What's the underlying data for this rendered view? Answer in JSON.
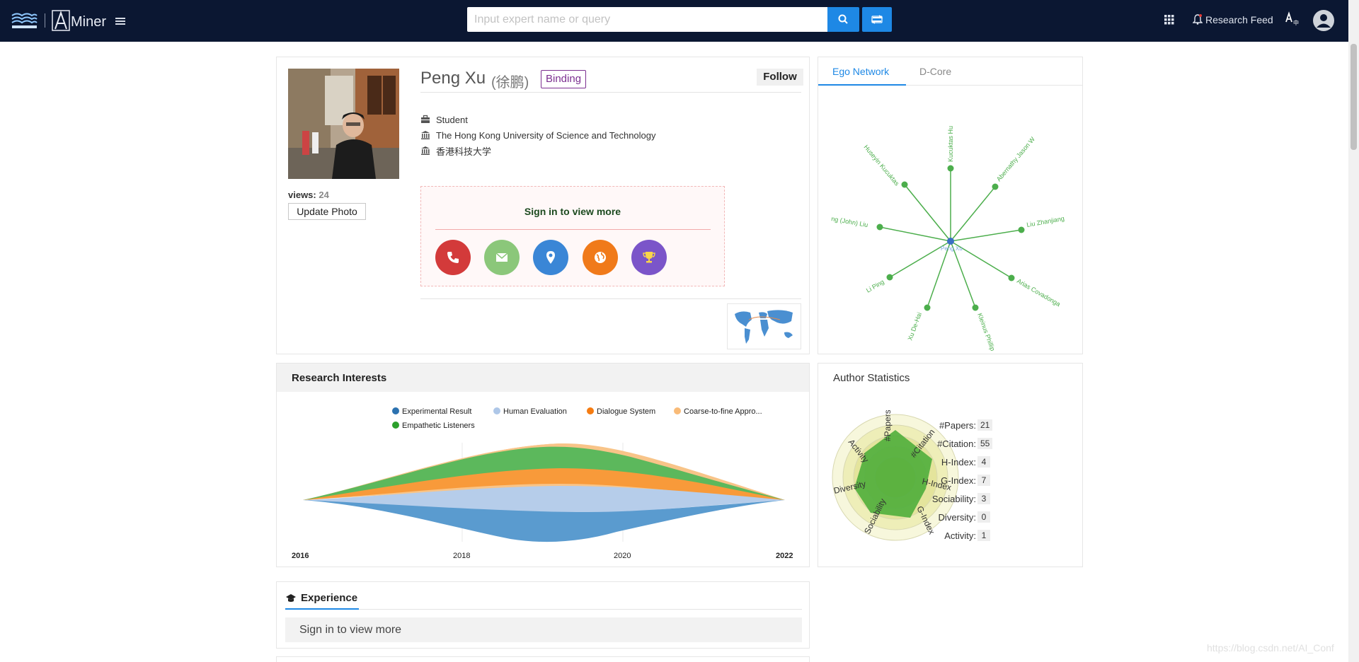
{
  "nav": {
    "brand": "Miner",
    "search_placeholder": "Input expert name or query",
    "research_feed": "Research Feed"
  },
  "profile": {
    "views_label": "views:",
    "views": "24",
    "update_photo": "Update Photo",
    "name": "Peng Xu",
    "name_zh": "(徐鹏)",
    "binding": "Binding",
    "follow": "Follow",
    "position": "Student",
    "affiliation": "The Hong Kong University of Science and Technology",
    "affiliation_zh": "香港科技大学",
    "signin_text": "Sign in to view more",
    "contact_icons": [
      "phone-icon",
      "mail-icon",
      "location-icon",
      "globe-icon",
      "trophy-icon"
    ],
    "contact_colors": [
      "#d33a3a",
      "#8bc77a",
      "#3a86d6",
      "#f07a1a",
      "#7b55c9"
    ]
  },
  "ego": {
    "tabs": [
      "Ego Network",
      "D-Core"
    ],
    "center": "Peng Xu",
    "nodes": [
      "Kucuktas Hu",
      "Abernathy Jason W",
      "Liu Zhanjiang",
      "Arias Covadonga",
      "Kleinus Phillip",
      "Xu De-Hai",
      "Li Ping",
      "ng (John) Liu",
      "Huseyin Kucuktas"
    ]
  },
  "research": {
    "title": "Research Interests",
    "legend": [
      "Experimental Result",
      "Human Evaluation",
      "Dialogue System",
      "Coarse-to-fine Appro...",
      "Empathetic Listeners"
    ],
    "colors": [
      "#5a9bcf",
      "#b6cdea",
      "#f89a3a",
      "#f8c488",
      "#5cb85c"
    ],
    "years": [
      "2016",
      "2018",
      "2020",
      "2022"
    ]
  },
  "stats": {
    "title": "Author Statistics",
    "rows": [
      {
        "label": "#Papers:",
        "value": "21"
      },
      {
        "label": "#Citation:",
        "value": "55"
      },
      {
        "label": "H-Index:",
        "value": "4"
      },
      {
        "label": "G-Index:",
        "value": "7"
      },
      {
        "label": "Sociability:",
        "value": "3"
      },
      {
        "label": "Diversity:",
        "value": "0"
      },
      {
        "label": "Activity:",
        "value": "1"
      }
    ],
    "radar_labels": [
      "#Papers",
      "#Citation",
      "H-Index",
      "G-Index",
      "Sociability",
      "Diversity",
      "Activity"
    ]
  },
  "experience": {
    "title": "Experience",
    "signin": "Sign in to view more"
  },
  "watermark": "https://blog.csdn.net/AI_Conf"
}
